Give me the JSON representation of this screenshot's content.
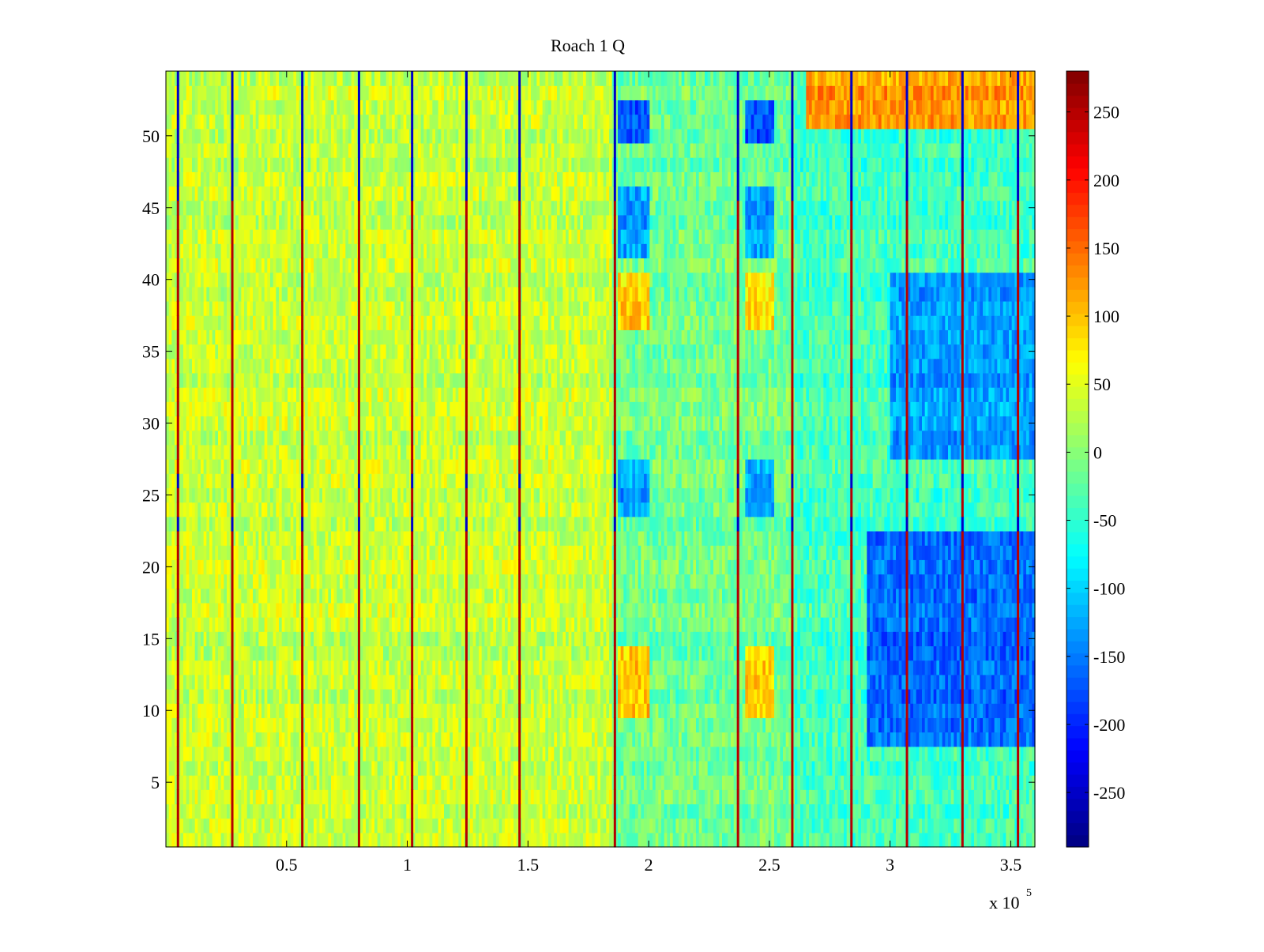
{
  "chart_data": {
    "type": "heatmap",
    "title": "Roach 1 Q",
    "xlabel": "",
    "ylabel": "",
    "x_multiplier_label": "x 10",
    "x_multiplier_exponent": "5",
    "xlim": [
      0,
      3.6
    ],
    "ylim": [
      0.5,
      54.5
    ],
    "x_ticks": [
      0.5,
      1,
      1.5,
      2,
      2.5,
      3,
      3.5
    ],
    "x_tick_labels": [
      "0.5",
      "1",
      "1.5",
      "2",
      "2.5",
      "3",
      "3.5"
    ],
    "y_ticks": [
      5,
      10,
      15,
      20,
      25,
      30,
      35,
      40,
      45,
      50
    ],
    "y_tick_labels": [
      "5",
      "10",
      "15",
      "20",
      "25",
      "30",
      "35",
      "40",
      "45",
      "50"
    ],
    "colorbar": {
      "colormap": "jet",
      "clim": [
        -290,
        280
      ],
      "ticks": [
        250,
        200,
        150,
        100,
        50,
        0,
        -50,
        -100,
        -150,
        -200,
        -250
      ],
      "tick_labels": [
        "250",
        "200",
        "150",
        "100",
        "50",
        "0",
        "-50",
        "-100",
        "-150",
        "-200",
        "-250"
      ]
    },
    "rows": 54,
    "spike_columns_x": [
      0.05,
      0.275,
      0.565,
      0.8,
      1.02,
      1.245,
      1.465,
      1.86,
      2.37,
      2.595,
      2.84,
      3.07,
      3.3,
      3.53
    ],
    "regions": [
      {
        "x": [
          0,
          1.85
        ],
        "y": [
          1,
          54
        ],
        "mean": 35
      },
      {
        "x": [
          1.87,
          2.0
        ],
        "y": [
          24,
          27
        ],
        "mean": -130
      },
      {
        "x": [
          1.87,
          2.0
        ],
        "y": [
          42,
          46
        ],
        "mean": -130
      },
      {
        "x": [
          1.87,
          2.0
        ],
        "y": [
          10,
          14
        ],
        "mean": 100
      },
      {
        "x": [
          1.87,
          2.0
        ],
        "y": [
          37,
          40
        ],
        "mean": 90
      },
      {
        "x": [
          1.87,
          2.0
        ],
        "y": [
          50,
          52
        ],
        "mean": -170
      },
      {
        "x": [
          2.4,
          2.52
        ],
        "y": [
          24,
          27
        ],
        "mean": -130
      },
      {
        "x": [
          2.4,
          2.52
        ],
        "y": [
          42,
          46
        ],
        "mean": -130
      },
      {
        "x": [
          2.4,
          2.52
        ],
        "y": [
          10,
          14
        ],
        "mean": 90
      },
      {
        "x": [
          2.4,
          2.52
        ],
        "y": [
          37,
          40
        ],
        "mean": 80
      },
      {
        "x": [
          2.4,
          2.52
        ],
        "y": [
          50,
          52
        ],
        "mean": -170
      },
      {
        "x": [
          2.65,
          3.6
        ],
        "y": [
          51,
          54
        ],
        "mean": 120
      },
      {
        "x": [
          2.9,
          3.6
        ],
        "y": [
          8,
          22
        ],
        "mean": -160
      },
      {
        "x": [
          3.0,
          3.6
        ],
        "y": [
          28,
          40
        ],
        "mean": -130
      }
    ]
  }
}
